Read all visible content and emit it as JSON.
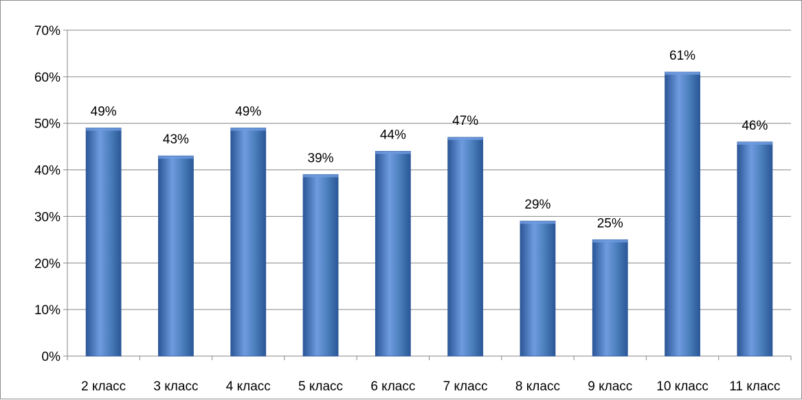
{
  "chart_data": {
    "type": "bar",
    "title": "",
    "xlabel": "",
    "ylabel": "",
    "categories": [
      "2 класс",
      "3 класс",
      "4 класс",
      "5 класс",
      "6 класс",
      "7 класс",
      "8 класс",
      "9 класс",
      "10 класс",
      "11 класс"
    ],
    "values": [
      49,
      43,
      49,
      39,
      44,
      47,
      29,
      25,
      61,
      46
    ],
    "value_labels": [
      "49%",
      "43%",
      "49%",
      "39%",
      "44%",
      "47%",
      "29%",
      "25%",
      "61%",
      "46%"
    ],
    "ylim": [
      0,
      70
    ],
    "yticks": [
      0,
      10,
      20,
      30,
      40,
      50,
      60,
      70
    ],
    "ytick_labels": [
      "0%",
      "10%",
      "20%",
      "30%",
      "40%",
      "50%",
      "60%",
      "70%"
    ],
    "grid": true,
    "legend": "none",
    "colors": {
      "bar": "#4a7ebb",
      "bar_light": "#6f9be0",
      "bar_dark": "#2b5797",
      "grid": "#868686",
      "axis": "#868686"
    }
  }
}
